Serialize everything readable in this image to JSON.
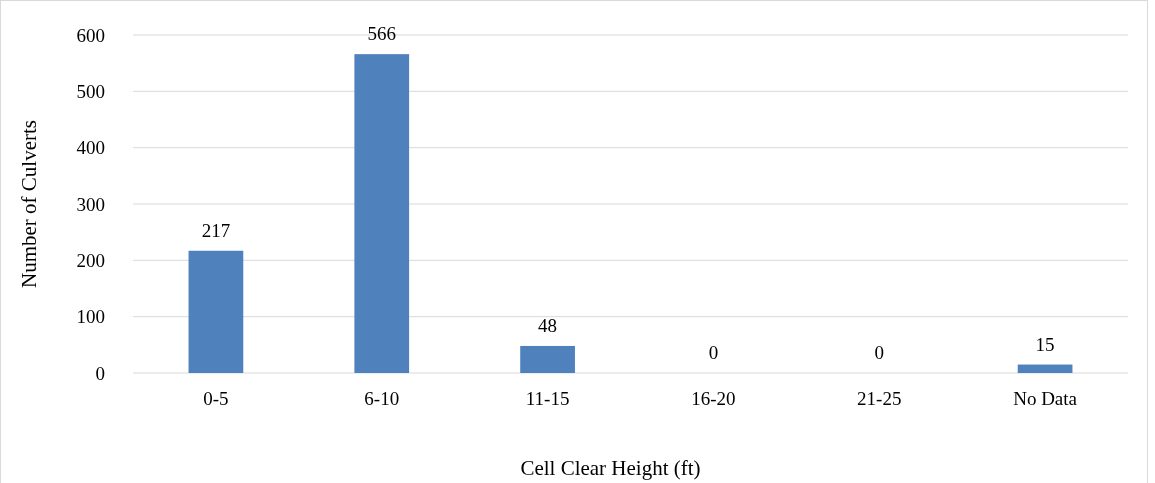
{
  "chart_data": {
    "type": "bar",
    "xlabel": "Cell Clear Height (ft)",
    "ylabel": "Number of Culverts",
    "categories": [
      "0-5",
      "6-10",
      "11-15",
      "16-20",
      "21-25",
      "No Data"
    ],
    "values": [
      217,
      566,
      48,
      0,
      0,
      15
    ],
    "color": "#4f81bd",
    "ylim": [
      0,
      600
    ],
    "yticks": [
      0,
      100,
      200,
      300,
      400,
      500,
      600
    ],
    "grid": "y",
    "data_labels": true
  }
}
